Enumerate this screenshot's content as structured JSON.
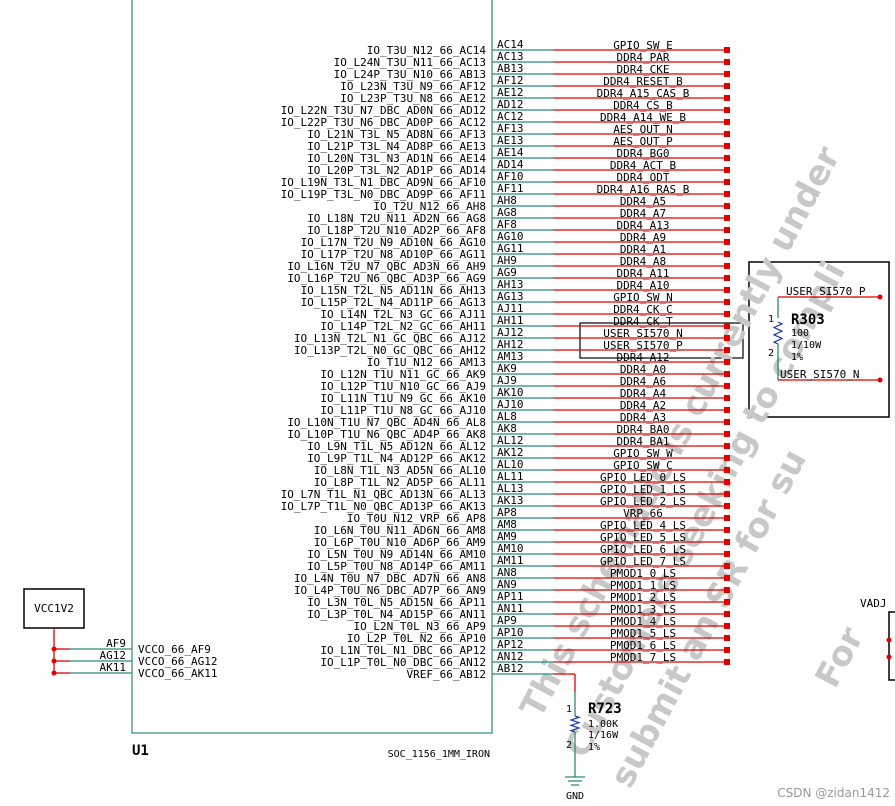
{
  "part": {
    "ref": "U1",
    "value": "SOC_1156_1MM_IRON"
  },
  "rows": [
    {
      "pin": "IO_T3U_N12_66_AC14",
      "ball": "AC14",
      "net": "GPIO_SW_E"
    },
    {
      "pin": "IO_L24N_T3U_N11_66_AC13",
      "ball": "AC13",
      "net": "DDR4_PAR"
    },
    {
      "pin": "IO_L24P_T3U_N10_66_AB13",
      "ball": "AB13",
      "net": "DDR4_CKE"
    },
    {
      "pin": "IO_L23N_T3U_N9_66_AF12",
      "ball": "AF12",
      "net": "DDR4_RESET_B"
    },
    {
      "pin": "IO_L23P_T3U_N8_66_AE12",
      "ball": "AE12",
      "net": "DDR4_A15_CAS_B"
    },
    {
      "pin": "IO_L22N_T3U_N7_DBC_AD0N_66_AD12",
      "ball": "AD12",
      "net": "DDR4_CS_B"
    },
    {
      "pin": "IO_L22P_T3U_N6_DBC_AD0P_66_AC12",
      "ball": "AC12",
      "net": "DDR4_A14_WE_B"
    },
    {
      "pin": "IO_L21N_T3L_N5_AD8N_66_AF13",
      "ball": "AF13",
      "net": "AES_OUT_N"
    },
    {
      "pin": "IO_L21P_T3L_N4_AD8P_66_AE13",
      "ball": "AE13",
      "net": "AES_OUT_P"
    },
    {
      "pin": "IO_L20N_T3L_N3_AD1N_66_AE14",
      "ball": "AE14",
      "net": "DDR4_BG0"
    },
    {
      "pin": "IO_L20P_T3L_N2_AD1P_66_AD14",
      "ball": "AD14",
      "net": "DDR4_ACT_B"
    },
    {
      "pin": "IO_L19N_T3L_N1_DBC_AD9N_66_AF10",
      "ball": "AF10",
      "net": "DDR4_ODT"
    },
    {
      "pin": "IO_L19P_T3L_N0_DBC_AD9P_66_AF11",
      "ball": "AF11",
      "net": "DDR4_A16_RAS_B"
    },
    {
      "pin": "IO_T2U_N12_66_AH8",
      "ball": "AH8",
      "net": "DDR4_A5"
    },
    {
      "pin": "IO_L18N_T2U_N11_AD2N_66_AG8",
      "ball": "AG8",
      "net": "DDR4_A7"
    },
    {
      "pin": "IO_L18P_T2U_N10_AD2P_66_AF8",
      "ball": "AF8",
      "net": "DDR4_A13"
    },
    {
      "pin": "IO_L17N_T2U_N9_AD10N_66_AG10",
      "ball": "AG10",
      "net": "DDR4_A9"
    },
    {
      "pin": "IO_L17P_T2U_N8_AD10P_66_AG11",
      "ball": "AG11",
      "net": "DDR4_A1"
    },
    {
      "pin": "IO_L16N_T2U_N7_QBC_AD3N_66_AH9",
      "ball": "AH9",
      "net": "DDR4_A8"
    },
    {
      "pin": "IO_L16P_T2U_N6_QBC_AD3P_66_AG9",
      "ball": "AG9",
      "net": "DDR4_A11"
    },
    {
      "pin": "IO_L15N_T2L_N5_AD11N_66_AH13",
      "ball": "AH13",
      "net": "DDR4_A10"
    },
    {
      "pin": "IO_L15P_T2L_N4_AD11P_66_AG13",
      "ball": "AG13",
      "net": "GPIO_SW_N"
    },
    {
      "pin": "IO_L14N_T2L_N3_GC_66_AJ11",
      "ball": "AJ11",
      "net": "DDR4_CK_C"
    },
    {
      "pin": "IO_L14P_T2L_N2_GC_66_AH11",
      "ball": "AH11",
      "net": "DDR4_CK_T"
    },
    {
      "pin": "IO_L13N_T2L_N1_GC_QBC_66_AJ12",
      "ball": "AJ12",
      "net": "USER_SI570_N"
    },
    {
      "pin": "IO_L13P_T2L_N0_GC_QBC_66_AH12",
      "ball": "AH12",
      "net": "USER_SI570_P"
    },
    {
      "pin": "IO_T1U_N12_66_AM13",
      "ball": "AM13",
      "net": "DDR4_A12"
    },
    {
      "pin": "IO_L12N_T1U_N11_GC_66_AK9",
      "ball": "AK9",
      "net": "DDR4_A0"
    },
    {
      "pin": "IO_L12P_T1U_N10_GC_66_AJ9",
      "ball": "AJ9",
      "net": "DDR4_A6"
    },
    {
      "pin": "IO_L11N_T1U_N9_GC_66_AK10",
      "ball": "AK10",
      "net": "DDR4_A4"
    },
    {
      "pin": "IO_L11P_T1U_N8_GC_66_AJ10",
      "ball": "AJ10",
      "net": "DDR4_A2"
    },
    {
      "pin": "IO_L10N_T1U_N7_QBC_AD4N_66_AL8",
      "ball": "AL8",
      "net": "DDR4_A3"
    },
    {
      "pin": "IO_L10P_T1U_N6_QBC_AD4P_66_AK8",
      "ball": "AK8",
      "net": "DDR4_BA0"
    },
    {
      "pin": "IO_L9N_T1L_N5_AD12N_66_AL12",
      "ball": "AL12",
      "net": "DDR4_BA1"
    },
    {
      "pin": "IO_L9P_T1L_N4_AD12P_66_AK12",
      "ball": "AK12",
      "net": "GPIO_SW_W"
    },
    {
      "pin": "IO_L8N_T1L_N3_AD5N_66_AL10",
      "ball": "AL10",
      "net": "GPIO_SW_C"
    },
    {
      "pin": "IO_L8P_T1L_N2_AD5P_66_AL11",
      "ball": "AL11",
      "net": "GPIO_LED_0_LS"
    },
    {
      "pin": "IO_L7N_T1L_N1_QBC_AD13N_66_AL13",
      "ball": "AL13",
      "net": "GPIO_LED_1_LS"
    },
    {
      "pin": "IO_L7P_T1L_N0_QBC_AD13P_66_AK13",
      "ball": "AK13",
      "net": "GPIO_LED_2_LS"
    },
    {
      "pin": "IO_T0U_N12_VRP_66_AP8",
      "ball": "AP8",
      "net": "VRP_66"
    },
    {
      "pin": "IO_L6N_T0U_N11_AD6N_66_AM8",
      "ball": "AM8",
      "net": "GPIO_LED_4_LS"
    },
    {
      "pin": "IO_L6P_T0U_N10_AD6P_66_AM9",
      "ball": "AM9",
      "net": "GPIO_LED_5_LS"
    },
    {
      "pin": "IO_L5N_T0U_N9_AD14N_66_AM10",
      "ball": "AM10",
      "net": "GPIO_LED_6_LS"
    },
    {
      "pin": "IO_L5P_T0U_N8_AD14P_66_AM11",
      "ball": "AM11",
      "net": "GPIO_LED_7_LS"
    },
    {
      "pin": "IO_L4N_T0U_N7_DBC_AD7N_66_AN8",
      "ball": "AN8",
      "net": "PMOD1_0_LS"
    },
    {
      "pin": "IO_L4P_T0U_N6_DBC_AD7P_66_AN9",
      "ball": "AN9",
      "net": "PMOD1_1_LS"
    },
    {
      "pin": "IO_L3N_T0L_N5_AD15N_66_AP11",
      "ball": "AP11",
      "net": "PMOD1_2_LS"
    },
    {
      "pin": "IO_L3P_T0L_N4_AD15P_66_AN11",
      "ball": "AN11",
      "net": "PMOD1_3_LS"
    },
    {
      "pin": "IO_L2N_T0L_N3_66_AP9",
      "ball": "AP9",
      "net": "PMOD1_4_LS"
    },
    {
      "pin": "IO_L2P_T0L_N2_66_AP10",
      "ball": "AP10",
      "net": "PMOD1_5_LS"
    },
    {
      "pin": "IO_L1N_T0L_N1_DBC_66_AP12",
      "ball": "AP12",
      "net": "PMOD1_6_LS"
    },
    {
      "pin": "IO_L1P_T0L_N0_DBC_66_AN12",
      "ball": "AN12",
      "net": "PMOD1_7_LS"
    },
    {
      "pin": "VREF_66_AB12",
      "ball": "AB12"
    }
  ],
  "power": {
    "net": "VCC1V2",
    "pins": [
      {
        "pin": "VCCO_66_AF9",
        "ball": "AF9"
      },
      {
        "pin": "VCCO_66_AG12",
        "ball": "AG12"
      },
      {
        "pin": "VCCO_66_AK11",
        "ball": "AK11"
      }
    ]
  },
  "r723": {
    "ref": "R723",
    "value": "1.00K",
    "power": "1/16W",
    "tol": "1%",
    "pin1": "1",
    "pin2": "2",
    "gnd": "GND"
  },
  "r303": {
    "ref": "R303",
    "value": "100",
    "power": "1/10W",
    "tol": "1%",
    "pin1": "1",
    "pin2": "2",
    "net_p": "USER_SI570_P",
    "net_n": "USER_SI570_N"
  },
  "vadj": "VADJ",
  "watermark": [
    "This schematic is currently under",
    "Customers seeking to compli",
    "submit an SR for su",
    "For"
  ],
  "credit": "CSDN @zidan1412"
}
